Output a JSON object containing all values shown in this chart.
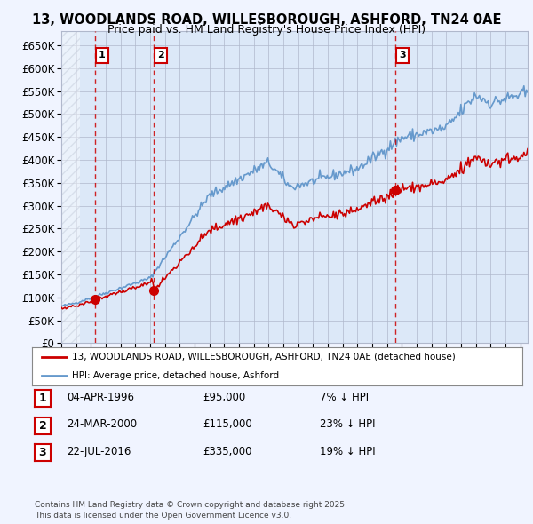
{
  "title": "13, WOODLANDS ROAD, WILLESBOROUGH, ASHFORD, TN24 0AE",
  "subtitle": "Price paid vs. HM Land Registry's House Price Index (HPI)",
  "ylim": [
    0,
    680000
  ],
  "yticks": [
    0,
    50000,
    100000,
    150000,
    200000,
    250000,
    300000,
    350000,
    400000,
    450000,
    500000,
    550000,
    600000,
    650000
  ],
  "xlim_start": 1994.0,
  "xlim_end": 2025.5,
  "hatch_end_year": 1995.3,
  "sale_dates": [
    1996.27,
    2000.23,
    2016.55
  ],
  "sale_prices": [
    95000,
    115000,
    335000
  ],
  "sale_labels": [
    "1",
    "2",
    "3"
  ],
  "legend_line1": "13, WOODLANDS ROAD, WILLESBOROUGH, ASHFORD, TN24 0AE (detached house)",
  "legend_line2": "HPI: Average price, detached house, Ashford",
  "table_rows": [
    {
      "label": "1",
      "date": "04-APR-1996",
      "price": "£95,000",
      "note": "7% ↓ HPI"
    },
    {
      "label": "2",
      "date": "24-MAR-2000",
      "price": "£115,000",
      "note": "23% ↓ HPI"
    },
    {
      "label": "3",
      "date": "22-JUL-2016",
      "price": "£335,000",
      "note": "19% ↓ HPI"
    }
  ],
  "footer": "Contains HM Land Registry data © Crown copyright and database right 2025.\nThis data is licensed under the Open Government Licence v3.0.",
  "bg_color": "#f0f4ff",
  "plot_bg_color": "#dce8f8",
  "hatch_color": "#c0c8d8",
  "grid_color": "#b0b8cc",
  "red_line_color": "#cc0000",
  "blue_line_color": "#6699cc",
  "sale_dot_color": "#cc0000",
  "dashed_line_color": "#cc0000"
}
